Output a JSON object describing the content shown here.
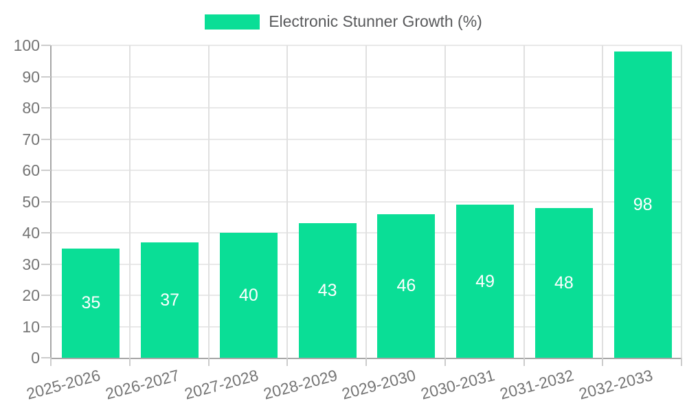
{
  "chart_data": {
    "type": "bar",
    "title": "",
    "legend": {
      "label": "Electronic Stunner Growth (%)",
      "position": "top"
    },
    "categories": [
      "2025-2026",
      "2026-2027",
      "2027-2028",
      "2028-2029",
      "2029-2030",
      "2030-2031",
      "2031-2032",
      "2032-2033"
    ],
    "values": [
      35,
      37,
      40,
      43,
      46,
      49,
      48,
      98
    ],
    "xlabel": "",
    "ylabel": "",
    "ylim": [
      0,
      100
    ],
    "ytick_step": 10,
    "ytick_labels": [
      "0",
      "10",
      "20",
      "30",
      "40",
      "50",
      "60",
      "70",
      "80",
      "90",
      "100"
    ],
    "grid": true,
    "colors": {
      "bar": "#0ade96",
      "value_label": "#ffffff",
      "h_gridline": "#e8e8e8",
      "v_gridline": "#e0e0e0",
      "axis_line": "#a6a6a6",
      "tick": "#cccccc",
      "axis_text": "#757575",
      "legend_text": "#58595b"
    }
  }
}
